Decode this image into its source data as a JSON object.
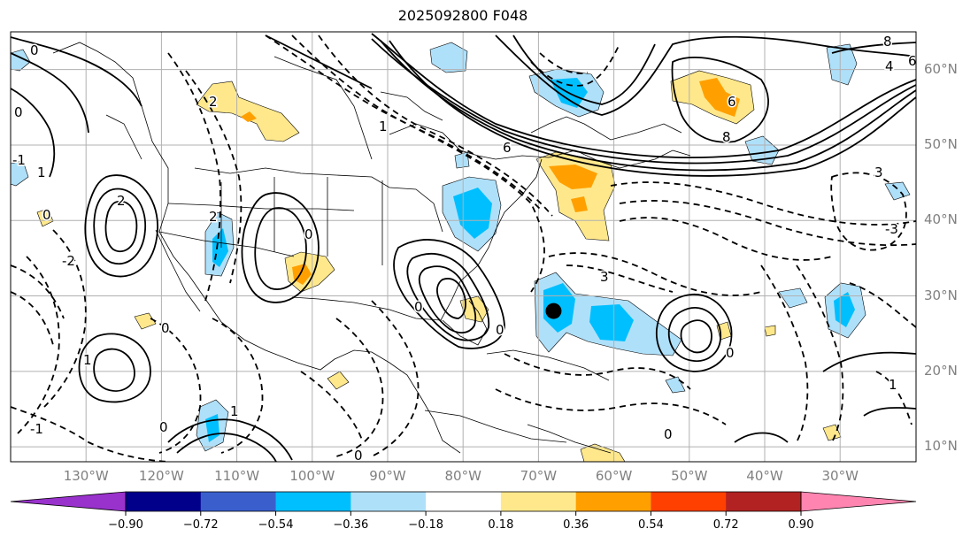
{
  "title": "2025092800 F048",
  "lat_labels": [
    "60°N",
    "50°N",
    "40°N",
    "30°N",
    "20°N",
    "10°N"
  ],
  "lon_labels": [
    "130°W",
    "120°W",
    "110°W",
    "100°W",
    "90°W",
    "80°W",
    "70°W",
    "60°W",
    "50°W",
    "40°W",
    "30°W"
  ],
  "colorbar": {
    "ticks": [
      "−0.90",
      "−0.72",
      "−0.54",
      "−0.36",
      "−0.18",
      "0.18",
      "0.36",
      "0.54",
      "0.72",
      "0.90"
    ],
    "colors": [
      "#9932cc",
      "#00008b",
      "#3a5fcd",
      "#00bfff",
      "#afe0fa",
      "#ffffff",
      "#ffe88c",
      "#ffa000",
      "#ff4000",
      "#b22222",
      "#ff85b0"
    ]
  },
  "contour_labels": [
    "0",
    "8",
    "6",
    "4",
    "6",
    "8",
    "6",
    "3",
    "3",
    "0",
    "2",
    "0",
    "0",
    "0",
    "-3",
    "2",
    "0",
    "1",
    "1",
    "0",
    "0",
    "0",
    "0",
    "1",
    "2",
    "0",
    "-2",
    "-1",
    "1",
    "1",
    "-1"
  ],
  "colors": {
    "contour": "#000000",
    "land": "#000000",
    "grid": "#b0b0b0",
    "marker": "#000000"
  },
  "marker": {
    "label": "storm-position",
    "lon": -68,
    "lat": 28
  }
}
